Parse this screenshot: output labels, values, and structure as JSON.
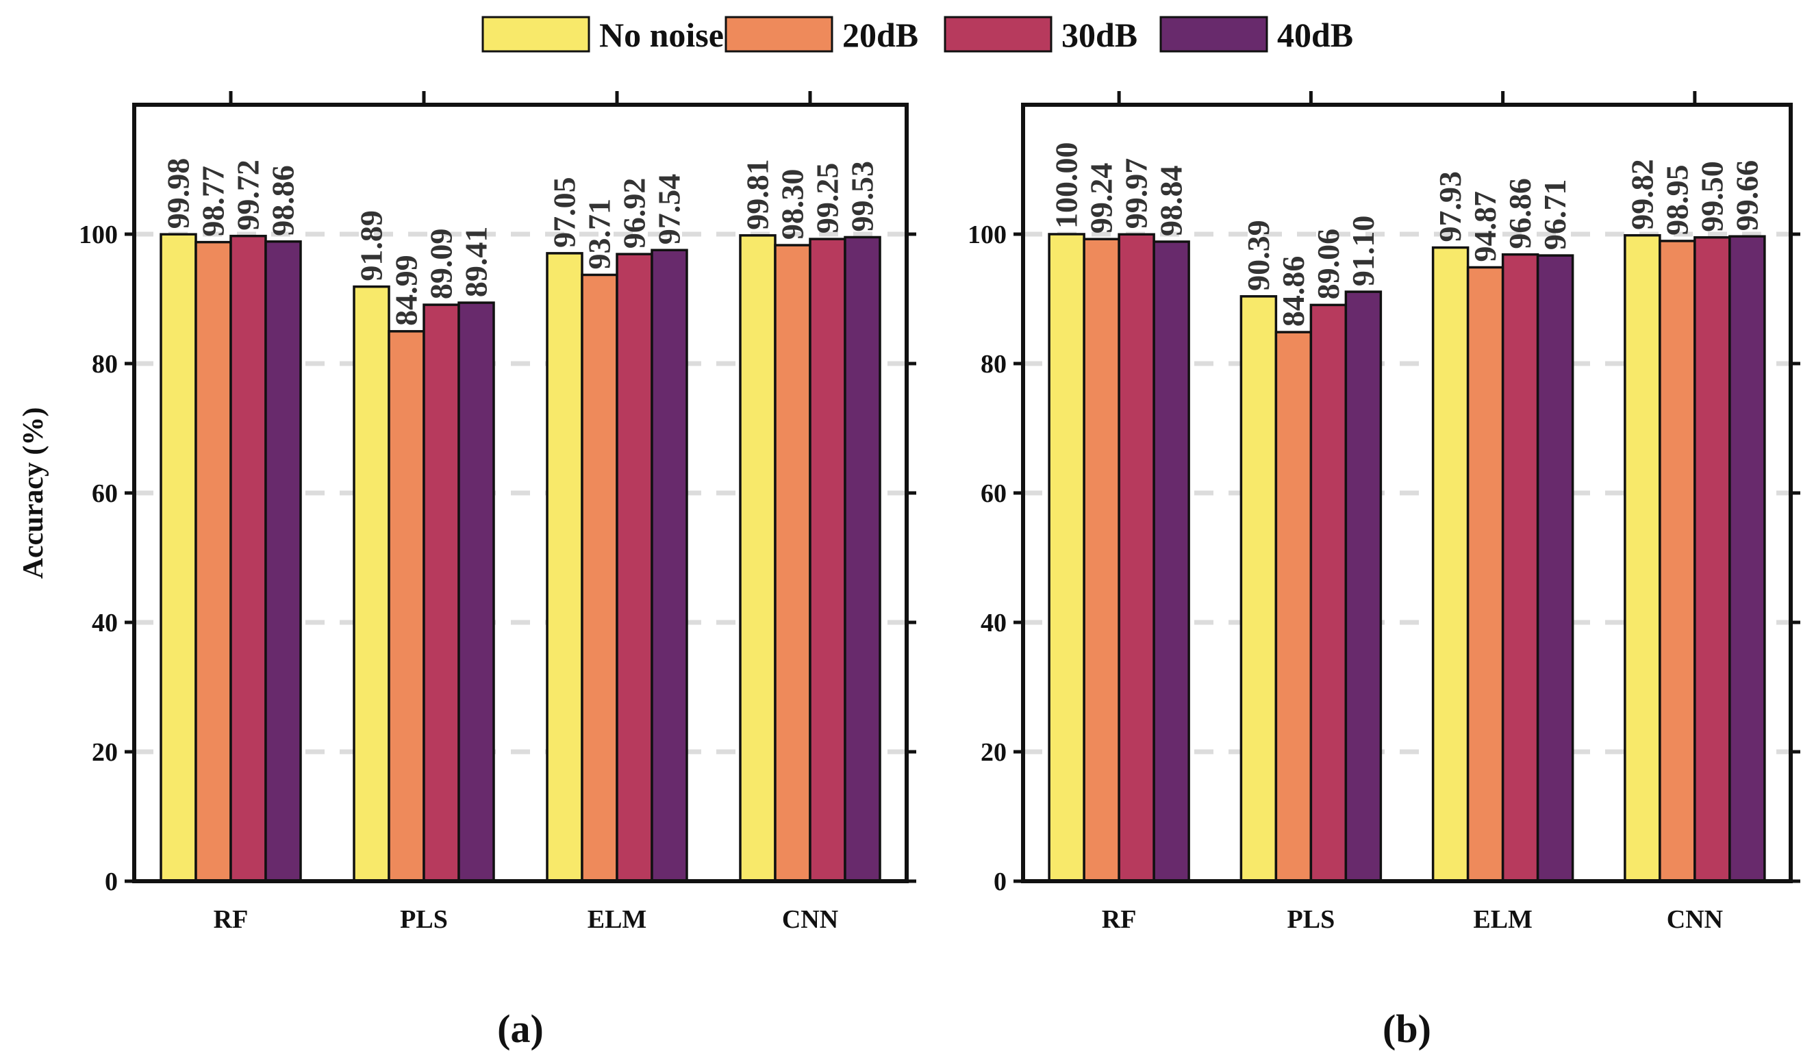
{
  "chart_data": [
    {
      "type": "bar",
      "panel_label": "(a)",
      "categories": [
        "RF",
        "PLS",
        "ELM",
        "CNN"
      ],
      "series": [
        {
          "name": "No noise",
          "values": [
            99.98,
            91.89,
            97.05,
            99.81
          ],
          "labels": [
            "99.98",
            "91.89",
            "97.05",
            "99.81"
          ]
        },
        {
          "name": "20dB",
          "values": [
            98.77,
            84.99,
            93.71,
            98.3
          ],
          "labels": [
            "98.77",
            "84.99",
            "93.71",
            "98.30"
          ]
        },
        {
          "name": "30dB",
          "values": [
            99.72,
            89.09,
            96.92,
            99.25
          ],
          "labels": [
            "99.72",
            "89.09",
            "96.92",
            "99.25"
          ]
        },
        {
          "name": "40dB",
          "values": [
            98.86,
            89.41,
            97.54,
            99.53
          ],
          "labels": [
            "98.86",
            "89.41",
            "97.54",
            "99.53"
          ]
        }
      ],
      "ylabel": "Accuracy (%)",
      "ylim": [
        0,
        120
      ],
      "yticks": [
        "0",
        "20",
        "40",
        "60",
        "80",
        "100"
      ],
      "grid": "horizontal dashed"
    },
    {
      "type": "bar",
      "panel_label": "(b)",
      "categories": [
        "RF",
        "PLS",
        "ELM",
        "CNN"
      ],
      "series": [
        {
          "name": "No noise",
          "values": [
            100.0,
            90.39,
            97.93,
            99.82
          ],
          "labels": [
            "100.00",
            "90.39",
            "97.93",
            "99.82"
          ]
        },
        {
          "name": "20dB",
          "values": [
            99.24,
            84.86,
            94.87,
            98.95
          ],
          "labels": [
            "99.24",
            "84.86",
            "94.87",
            "98.95"
          ]
        },
        {
          "name": "30dB",
          "values": [
            99.97,
            89.06,
            96.86,
            99.5
          ],
          "labels": [
            "99.97",
            "89.06",
            "96.86",
            "99.50"
          ]
        },
        {
          "name": "40dB",
          "values": [
            98.84,
            91.1,
            96.71,
            99.66
          ],
          "labels": [
            "98.84",
            "91.10",
            "96.71",
            "99.66"
          ]
        }
      ],
      "ylabel": "",
      "ylim": [
        0,
        120
      ],
      "yticks": [
        "0",
        "20",
        "40",
        "60",
        "80",
        "100"
      ],
      "grid": "horizontal dashed"
    }
  ],
  "legend": {
    "placement": "top-center",
    "entries": [
      "No noise",
      "20dB",
      "30dB",
      "40dB"
    ]
  },
  "colors": [
    "#F8E96A",
    "#EE8A5B",
    "#B73A5D",
    "#682A6C"
  ]
}
